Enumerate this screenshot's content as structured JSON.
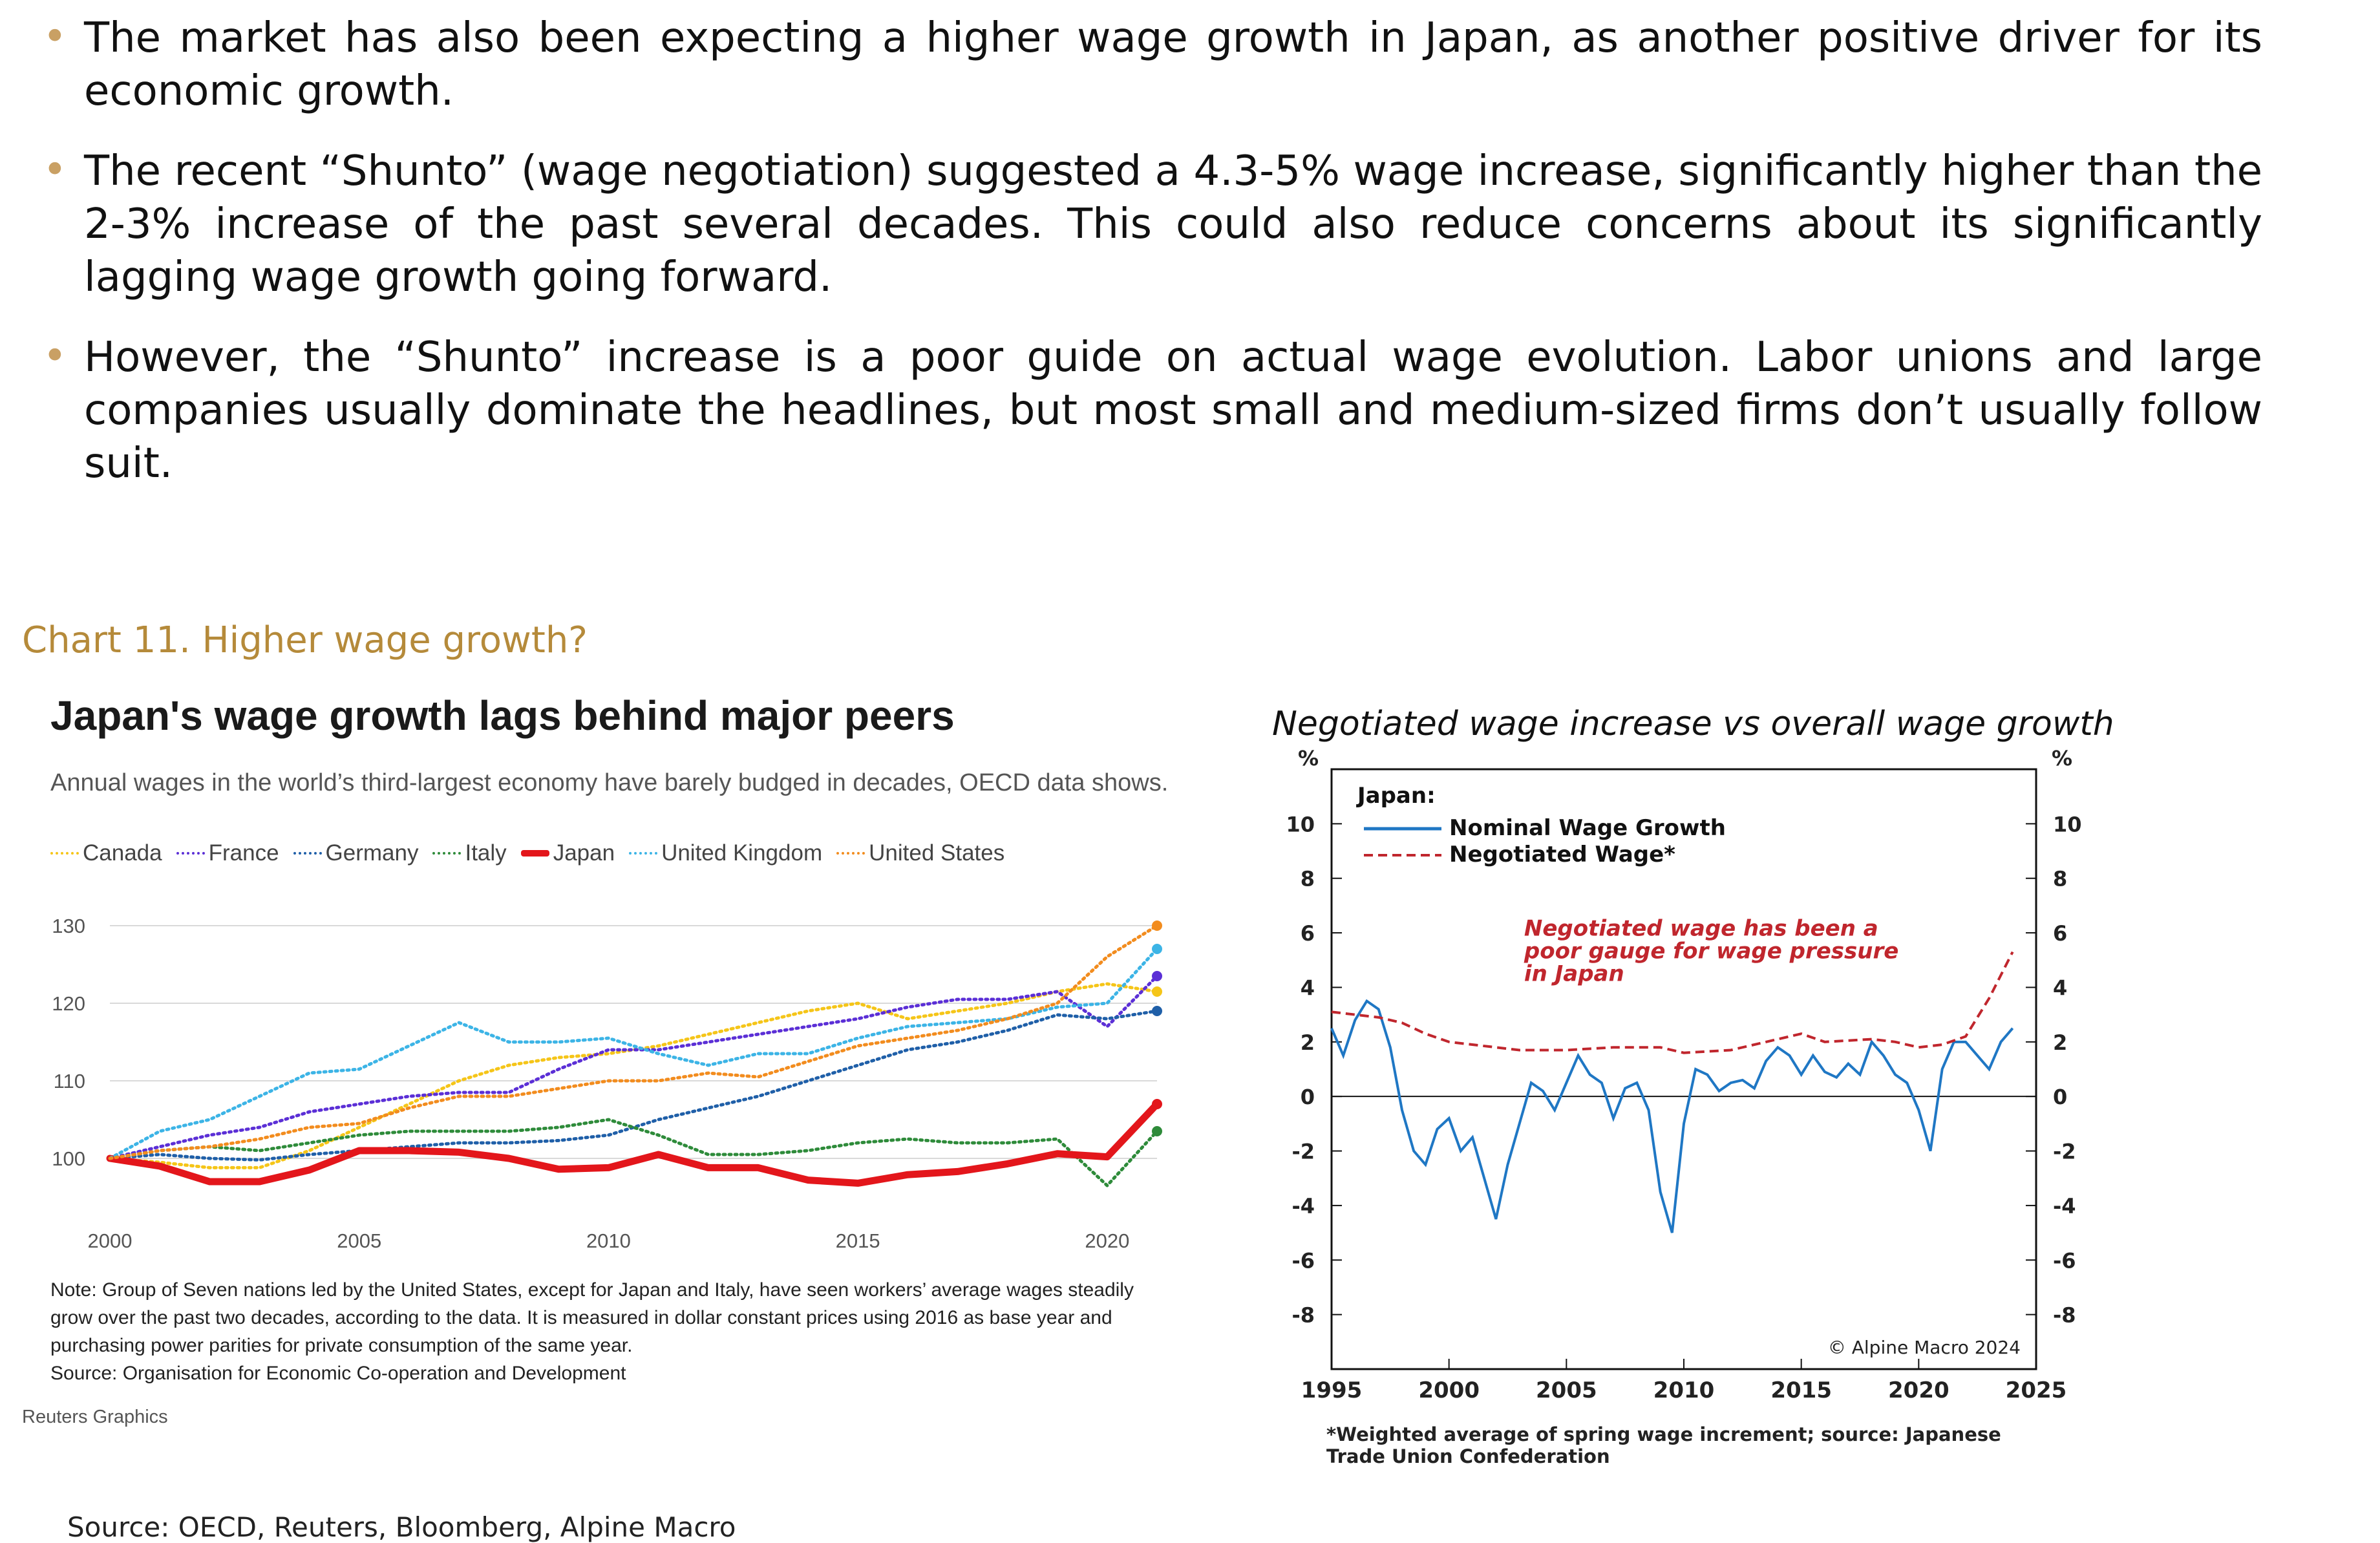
{
  "bullets": [
    "The market has also been expecting a higher wage growth in Japan, as another positive driver for its economic growth.",
    "The recent “Shunto” (wage negotiation) suggested a 4.3-5% wage increase, significantly higher than the 2-3% increase of the past several decades. This could also reduce concerns about its significantly lagging wage growth going forward.",
    "However, the “Shunto” increase is a poor guide on actual wage evolution. Labor unions and large companies usually dominate the headlines, but most small and medium-sized firms don’t usually follow suit."
  ],
  "caption": "Chart 11. Higher wage growth?",
  "left": {
    "title": "Japan's wage growth lags behind major peers",
    "subtitle": "Annual wages in the world’s third-largest economy have barely budged in decades, OECD data shows.",
    "note": "Note: Group of Seven nations led by the United States, except for Japan and Italy, have seen workers’ average wages steadily grow over the past two decades, according to the data. It is measured in dollar constant prices using 2016 as base year and purchasing power parities for private consumption of the same year.",
    "source": "Source: Organisation for Economic Co-operation and Development",
    "credit": "Reuters Graphics"
  },
  "right": {
    "title": "Negotiated wage increase vs overall wage growth",
    "footnote_1": "*Weighted average of spring wage increment; source: Japanese",
    "footnote_2": "Trade Union Confederation"
  },
  "bottom_source": "Source: OECD, Reuters, Bloomberg, Alpine Macro",
  "chart_data": [
    {
      "type": "line",
      "title": "Japan's wage growth lags behind major peers",
      "xlim": [
        2000,
        2021
      ],
      "ylim": [
        96,
        131
      ],
      "yticks": [
        100,
        110,
        120,
        130
      ],
      "xticks": [
        2000,
        2005,
        2010,
        2015,
        2020
      ],
      "x": [
        2000,
        2001,
        2002,
        2003,
        2004,
        2005,
        2006,
        2007,
        2008,
        2009,
        2010,
        2011,
        2012,
        2013,
        2014,
        2015,
        2016,
        2017,
        2018,
        2019,
        2020,
        2021
      ],
      "series": [
        {
          "name": "Canada",
          "color": "#f5c518",
          "dash": "dot",
          "values": [
            100,
            99.5,
            98.8,
            98.8,
            101,
            104,
            107,
            110,
            112,
            113,
            113.5,
            114.5,
            116,
            117.5,
            119,
            120,
            118,
            119,
            120,
            121.5,
            122.5,
            121.5
          ]
        },
        {
          "name": "France",
          "color": "#5b2fd6",
          "dash": "dot",
          "values": [
            100,
            101.5,
            103,
            104,
            106,
            107,
            108,
            108.5,
            108.5,
            111.5,
            114,
            114,
            115,
            116,
            117,
            118,
            119.5,
            120.5,
            120.5,
            121.5,
            117,
            123.5
          ]
        },
        {
          "name": "Germany",
          "color": "#1f5fa8",
          "dash": "dot",
          "values": [
            100,
            100.5,
            100,
            99.8,
            100.5,
            101,
            101.5,
            102,
            102,
            102.3,
            103,
            105,
            106.5,
            108,
            110,
            112,
            114,
            115,
            116.5,
            118.5,
            118,
            119
          ]
        },
        {
          "name": "Italy",
          "color": "#2e8b3a",
          "dash": "dot",
          "values": [
            100,
            101,
            101.5,
            101,
            102,
            103,
            103.5,
            103.5,
            103.5,
            104,
            105,
            103,
            100.5,
            100.5,
            101,
            102,
            102.5,
            102,
            102,
            102.5,
            96.5,
            103.5
          ]
        },
        {
          "name": "Japan",
          "color": "#e3161b",
          "dash": "solid",
          "values": [
            100,
            99,
            97,
            97,
            98.5,
            101,
            101,
            100.8,
            100,
            98.6,
            98.8,
            100.5,
            98.8,
            98.8,
            97.2,
            96.8,
            97.9,
            98.3,
            99.3,
            100.6,
            100.2,
            107
          ]
        },
        {
          "name": "United Kingdom",
          "color": "#3cb4e6",
          "dash": "dot",
          "values": [
            100,
            103.5,
            105,
            108,
            111,
            111.5,
            114.5,
            117.5,
            115,
            115,
            115.5,
            113.5,
            112,
            113.5,
            113.5,
            115.5,
            117,
            117.5,
            118,
            119.5,
            120,
            127
          ]
        },
        {
          "name": "United States",
          "color": "#f28c1e",
          "dash": "dot",
          "values": [
            100,
            101,
            101.5,
            102.5,
            104,
            104.5,
            106.5,
            108,
            108,
            109,
            110,
            110,
            111,
            110.5,
            112.5,
            114.5,
            115.5,
            116.5,
            118,
            120,
            126,
            130
          ]
        }
      ]
    },
    {
      "type": "line",
      "title": "Negotiated wage increase vs overall wage growth",
      "xlim": [
        1995,
        2025
      ],
      "ylim": [
        -10,
        12
      ],
      "yticks": [
        -8,
        -6,
        -4,
        -2,
        0,
        2,
        4,
        6,
        8,
        10
      ],
      "xticks": [
        1995,
        2000,
        2005,
        2010,
        2015,
        2020,
        2025
      ],
      "ylabel_left": "%",
      "ylabel_right": "%",
      "legend_header": "Japan:",
      "annotation": [
        "Negotiated wage has been a",
        "poor gauge for wage pressure",
        "in Japan"
      ],
      "watermark": "© Alpine Macro 2024",
      "series": [
        {
          "name": "Nominal Wage Growth",
          "color": "#1f77c4",
          "dash": "solid",
          "x": [
            1995,
            1995.5,
            1996,
            1996.5,
            1997,
            1997.5,
            1998,
            1998.5,
            1999,
            1999.5,
            2000,
            2000.5,
            2001,
            2001.5,
            2002,
            2002.5,
            2003,
            2003.5,
            2004,
            2004.5,
            2005,
            2005.5,
            2006,
            2006.5,
            2007,
            2007.5,
            2008,
            2008.5,
            2009,
            2009.5,
            2010,
            2010.5,
            2011,
            2011.5,
            2012,
            2012.5,
            2013,
            2013.5,
            2014,
            2014.5,
            2015,
            2015.5,
            2016,
            2016.5,
            2017,
            2017.5,
            2018,
            2018.5,
            2019,
            2019.5,
            2020,
            2020.5,
            2021,
            2021.5,
            2022,
            2022.5,
            2023,
            2023.5,
            2024
          ],
          "values": [
            2.5,
            1.5,
            2.8,
            3.5,
            3.2,
            1.8,
            -0.5,
            -2.0,
            -2.5,
            -1.2,
            -0.8,
            -2.0,
            -1.5,
            -3.0,
            -4.5,
            -2.5,
            -1.0,
            0.5,
            0.2,
            -0.5,
            0.5,
            1.5,
            0.8,
            0.5,
            -0.8,
            0.3,
            0.5,
            -0.5,
            -3.5,
            -5.0,
            -1.0,
            1.0,
            0.8,
            0.2,
            0.5,
            0.6,
            0.3,
            1.3,
            1.8,
            1.5,
            0.8,
            1.5,
            0.9,
            0.7,
            1.2,
            0.8,
            2.0,
            1.5,
            0.8,
            0.5,
            -0.5,
            -2.0,
            1.0,
            2.0,
            2.0,
            1.5,
            1.0,
            2.0,
            2.5
          ]
        },
        {
          "name": "Negotiated Wage*",
          "color": "#c0262d",
          "dash": "dash",
          "x": [
            1995,
            1997,
            1998,
            1999,
            2000,
            2002,
            2003,
            2005,
            2007,
            2008,
            2009,
            2010,
            2012,
            2014,
            2015,
            2016,
            2018,
            2019,
            2020,
            2021,
            2022,
            2023,
            2024
          ],
          "values": [
            3.1,
            2.9,
            2.7,
            2.3,
            2.0,
            1.8,
            1.7,
            1.7,
            1.8,
            1.8,
            1.8,
            1.6,
            1.7,
            2.1,
            2.3,
            2.0,
            2.1,
            2.0,
            1.8,
            1.9,
            2.2,
            3.6,
            5.3
          ]
        }
      ]
    }
  ]
}
